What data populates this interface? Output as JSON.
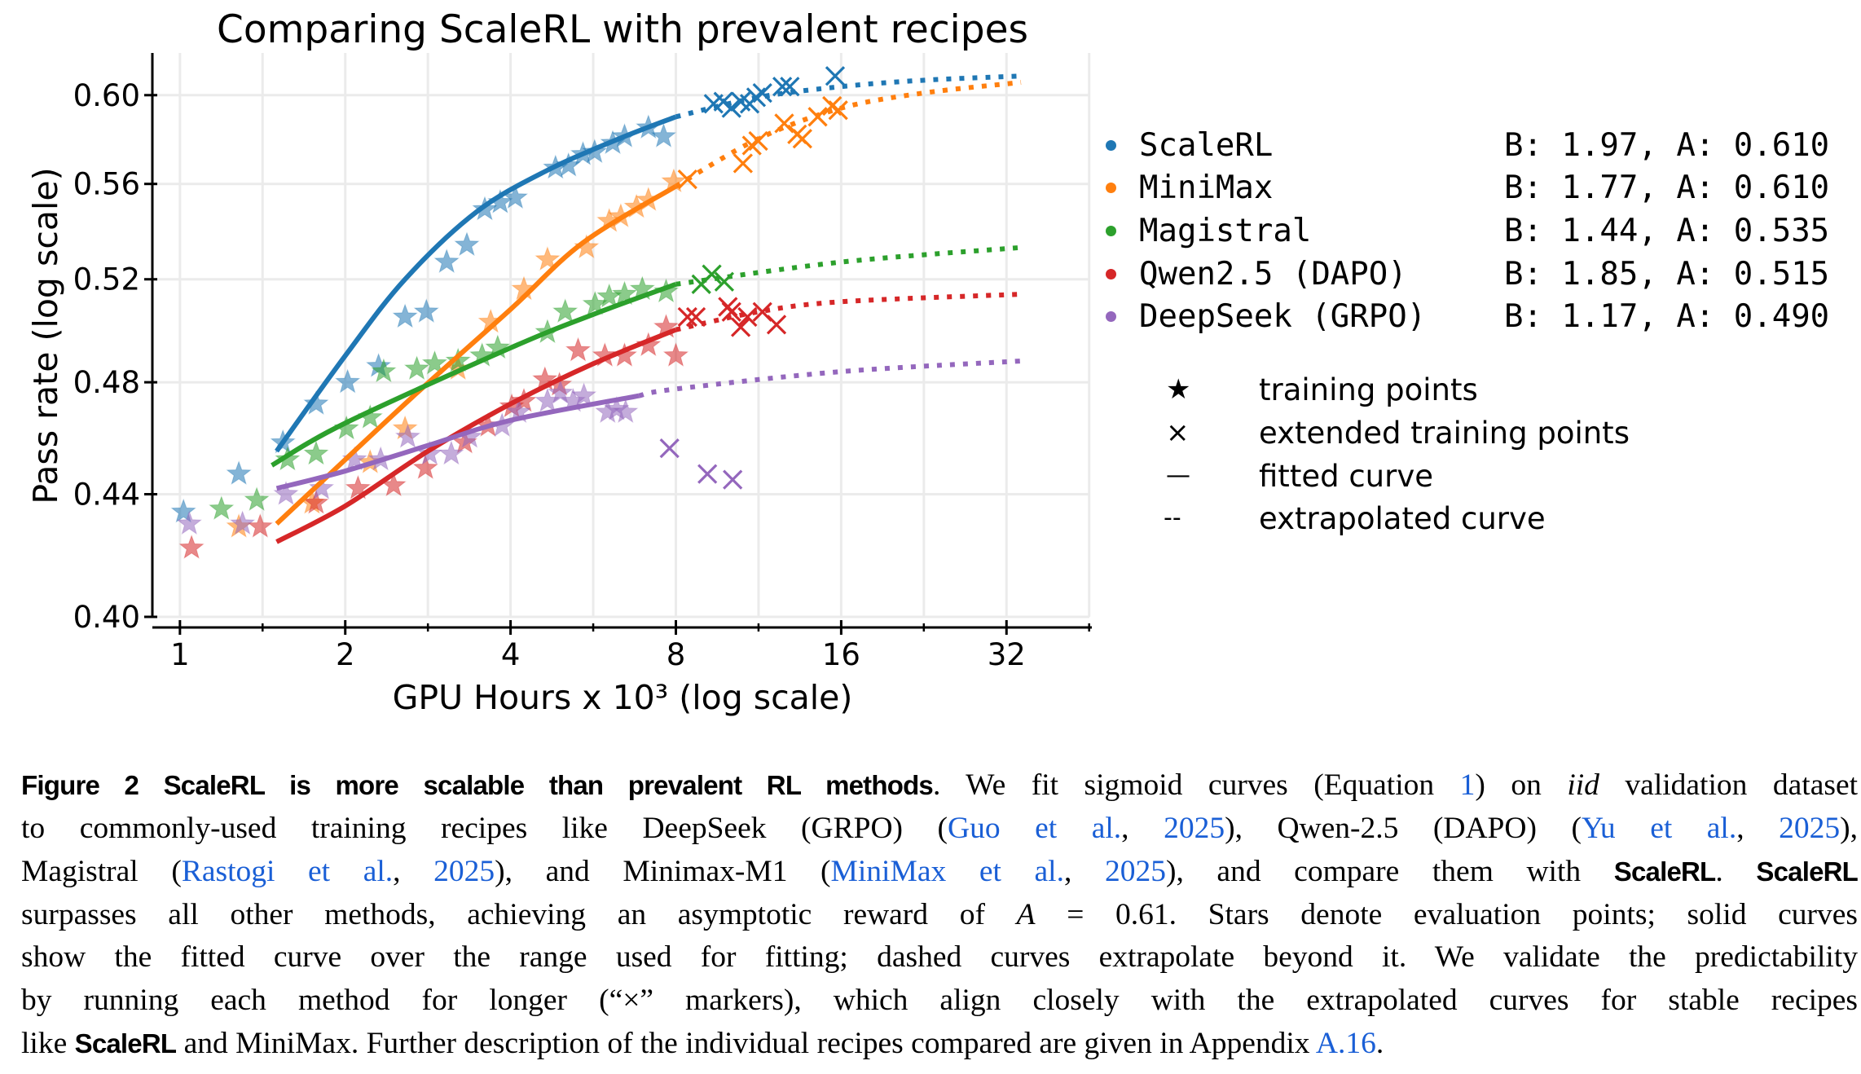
{
  "chart_data": {
    "type": "line",
    "title": "Comparing ScaleRL with prevalent recipes",
    "xlabel": "GPU Hours x 10³ (log scale)",
    "ylabel": "Pass rate (log scale)",
    "xscale": "log",
    "yscale": "log",
    "xlim": [
      0.9,
      45.3
    ],
    "ylim": [
      0.4,
      0.62
    ],
    "xticks": [
      1,
      2,
      4,
      8,
      16,
      32
    ],
    "xtick_labels": [
      "1",
      "2",
      "4",
      "8",
      "16",
      "32"
    ],
    "yticks": [
      0.4,
      0.44,
      0.48,
      0.52,
      0.56,
      0.6
    ],
    "ytick_labels": [
      "0.40",
      "0.44",
      "0.48",
      "0.52",
      "0.56",
      "0.60"
    ],
    "grid": true,
    "legend_placement": "right",
    "series": [
      {
        "name": "ScaleRL",
        "params": "B: 1.97, A: 0.610",
        "color": "#1f77b4",
        "training_points": [
          [
            1.015,
            0.434
          ],
          [
            1.28,
            0.447
          ],
          [
            1.54,
            0.458
          ],
          [
            1.77,
            0.472
          ],
          [
            2.02,
            0.48
          ],
          [
            2.3,
            0.486
          ],
          [
            2.57,
            0.505
          ],
          [
            2.81,
            0.507
          ],
          [
            3.06,
            0.527
          ],
          [
            3.33,
            0.534
          ],
          [
            3.59,
            0.549
          ],
          [
            3.83,
            0.552
          ],
          [
            4.08,
            0.554
          ],
          [
            4.83,
            0.567
          ],
          [
            5.1,
            0.568
          ],
          [
            5.42,
            0.573
          ],
          [
            5.69,
            0.574
          ],
          [
            6.14,
            0.578
          ],
          [
            6.45,
            0.581
          ],
          [
            7.13,
            0.585
          ],
          [
            7.6,
            0.581
          ]
        ],
        "extended_points": [
          [
            9.37,
            0.596
          ],
          [
            9.76,
            0.597
          ],
          [
            10.1,
            0.594
          ],
          [
            10.5,
            0.597
          ],
          [
            10.9,
            0.596
          ],
          [
            11.2,
            0.599
          ],
          [
            11.5,
            0.601
          ],
          [
            12.5,
            0.604
          ],
          [
            12.9,
            0.604
          ],
          [
            15.6,
            0.609
          ]
        ],
        "fitted_curve": [
          [
            1.5,
            0.455
          ],
          [
            2,
            0.49
          ],
          [
            2.57,
            0.52
          ],
          [
            3.47,
            0.548
          ],
          [
            4.67,
            0.566
          ],
          [
            6.3,
            0.58
          ],
          [
            8,
            0.59
          ]
        ],
        "extrapolated_curve": [
          [
            8,
            0.59
          ],
          [
            11.3,
            0.599
          ],
          [
            16,
            0.604
          ],
          [
            22.6,
            0.607
          ],
          [
            34,
            0.609
          ]
        ]
      },
      {
        "name": "MiniMax",
        "params": "B: 1.77, A: 0.610",
        "color": "#ff7f0e",
        "training_points": [
          [
            1.28,
            0.429
          ],
          [
            1.74,
            0.437
          ],
          [
            2.22,
            0.451
          ],
          [
            2.57,
            0.463
          ],
          [
            3.21,
            0.485
          ],
          [
            3.68,
            0.503
          ],
          [
            4.23,
            0.516
          ],
          [
            4.67,
            0.528
          ],
          [
            5.5,
            0.533
          ],
          [
            6.05,
            0.544
          ],
          [
            6.35,
            0.546
          ],
          [
            6.78,
            0.55
          ],
          [
            7.13,
            0.553
          ],
          [
            7.93,
            0.561
          ]
        ],
        "extended_points": [
          [
            8.4,
            0.562
          ],
          [
            10.6,
            0.569
          ],
          [
            11.0,
            0.577
          ],
          [
            11.3,
            0.579
          ],
          [
            12.6,
            0.587
          ],
          [
            13.3,
            0.582
          ],
          [
            13.6,
            0.58
          ],
          [
            14.5,
            0.59
          ],
          [
            15.4,
            0.595
          ],
          [
            15.8,
            0.593
          ]
        ],
        "fitted_curve": [
          [
            1.5,
            0.43
          ],
          [
            2,
            0.452
          ],
          [
            2.7,
            0.476
          ],
          [
            4,
            0.508
          ],
          [
            5.42,
            0.535
          ],
          [
            8,
            0.559
          ]
        ],
        "extrapolated_curve": [
          [
            8,
            0.559
          ],
          [
            11.3,
            0.58
          ],
          [
            16,
            0.594
          ],
          [
            22.6,
            0.601
          ],
          [
            34,
            0.606
          ]
        ]
      },
      {
        "name": "Magistral",
        "params": "B: 1.44, A: 0.535",
        "color": "#2ca02c",
        "training_points": [
          [
            1.19,
            0.435
          ],
          [
            1.38,
            0.438
          ],
          [
            1.57,
            0.452
          ],
          [
            1.77,
            0.454
          ],
          [
            2.01,
            0.463
          ],
          [
            2.22,
            0.467
          ],
          [
            2.35,
            0.484
          ],
          [
            2.7,
            0.485
          ],
          [
            2.91,
            0.487
          ],
          [
            3.21,
            0.488
          ],
          [
            3.55,
            0.49
          ],
          [
            3.79,
            0.493
          ],
          [
            4.67,
            0.499
          ],
          [
            5.03,
            0.507
          ],
          [
            5.7,
            0.51
          ],
          [
            6.05,
            0.513
          ],
          [
            6.45,
            0.514
          ],
          [
            6.95,
            0.516
          ],
          [
            7.68,
            0.515
          ]
        ],
        "extended_points": [
          [
            8.9,
            0.518
          ],
          [
            9.3,
            0.522
          ],
          [
            9.8,
            0.519
          ]
        ],
        "fitted_curve": [
          [
            1.47,
            0.45
          ],
          [
            2,
            0.465
          ],
          [
            4,
            0.493
          ],
          [
            5.66,
            0.506
          ],
          [
            8,
            0.518
          ]
        ],
        "extrapolated_curve": [
          [
            8,
            0.518
          ],
          [
            16,
            0.527
          ],
          [
            34,
            0.533
          ]
        ]
      },
      {
        "name": "Qwen2.5 (DAPO)",
        "params": "B: 1.85, A: 0.515",
        "color": "#d62728",
        "training_points": [
          [
            1.05,
            0.422
          ],
          [
            1.4,
            0.429
          ],
          [
            1.77,
            0.437
          ],
          [
            2.11,
            0.442
          ],
          [
            2.45,
            0.443
          ],
          [
            2.8,
            0.449
          ],
          [
            3.3,
            0.458
          ],
          [
            3.64,
            0.464
          ],
          [
            4.02,
            0.471
          ],
          [
            4.23,
            0.473
          ],
          [
            4.62,
            0.481
          ],
          [
            4.91,
            0.479
          ],
          [
            5.31,
            0.492
          ],
          [
            5.94,
            0.49
          ],
          [
            6.45,
            0.49
          ],
          [
            7.13,
            0.494
          ],
          [
            7.68,
            0.501
          ],
          [
            8.0,
            0.49
          ]
        ],
        "extended_points": [
          [
            8.4,
            0.505
          ],
          [
            8.7,
            0.505
          ],
          [
            9.95,
            0.509
          ],
          [
            10.1,
            0.507
          ],
          [
            10.5,
            0.501
          ],
          [
            10.8,
            0.505
          ],
          [
            11.5,
            0.507
          ],
          [
            12.2,
            0.502
          ]
        ],
        "fitted_curve": [
          [
            1.5,
            0.424
          ],
          [
            2,
            0.436
          ],
          [
            2.83,
            0.455
          ],
          [
            4,
            0.472
          ],
          [
            5.66,
            0.487
          ],
          [
            8,
            0.5
          ]
        ],
        "extrapolated_curve": [
          [
            8,
            0.5
          ],
          [
            11.3,
            0.507
          ],
          [
            16,
            0.511
          ],
          [
            34,
            0.514
          ]
        ]
      },
      {
        "name": "DeepSeek (GRPO)",
        "params": "B: 1.17, A: 0.490",
        "color": "#9467bd",
        "training_points": [
          [
            1.04,
            0.43
          ],
          [
            1.3,
            0.43
          ],
          [
            1.56,
            0.44
          ],
          [
            1.81,
            0.442
          ],
          [
            2.08,
            0.452
          ],
          [
            2.32,
            0.452
          ],
          [
            2.6,
            0.46
          ],
          [
            2.85,
            0.454
          ],
          [
            3.12,
            0.454
          ],
          [
            3.37,
            0.46
          ],
          [
            3.86,
            0.464
          ],
          [
            4.14,
            0.469
          ],
          [
            4.67,
            0.473
          ],
          [
            4.93,
            0.476
          ],
          [
            5.2,
            0.473
          ],
          [
            5.44,
            0.475
          ],
          [
            6.01,
            0.469
          ],
          [
            6.24,
            0.47
          ],
          [
            6.48,
            0.469
          ]
        ],
        "extended_points": [
          [
            7.79,
            0.456
          ],
          [
            9.13,
            0.447
          ],
          [
            10.15,
            0.445
          ]
        ],
        "fitted_curve": [
          [
            1.5,
            0.442
          ],
          [
            2,
            0.448
          ],
          [
            2.83,
            0.457
          ],
          [
            4,
            0.466
          ],
          [
            6.85,
            0.475
          ]
        ],
        "extrapolated_curve": [
          [
            6.85,
            0.475
          ],
          [
            8,
            0.4775
          ],
          [
            16,
            0.484
          ],
          [
            34,
            0.488
          ]
        ]
      }
    ],
    "marker_legend": [
      {
        "symbol": "★",
        "label": "training points"
      },
      {
        "symbol": "×",
        "label": "extended training points"
      },
      {
        "symbol": "—",
        "label": "fitted curve"
      },
      {
        "symbol": "--",
        "label": "extrapolated curve"
      }
    ]
  },
  "caption": {
    "lines": [
      [
        {
          "t": "bold",
          "text": "Figure 2  ScaleRL is more scalable than prevalent RL methods"
        },
        {
          "t": "text",
          "text": ". We fit sigmoid curves (Equation "
        },
        {
          "t": "link",
          "text": "1"
        },
        {
          "t": "text",
          "text": ") on "
        },
        {
          "t": "italic",
          "text": "iid"
        },
        {
          "t": "text",
          "text": " validation dataset"
        }
      ],
      [
        {
          "t": "text",
          "text": "to commonly-used training recipes like DeepSeek (GRPO) ("
        },
        {
          "t": "link",
          "text": "Guo et al."
        },
        {
          "t": "text",
          "text": ", "
        },
        {
          "t": "link",
          "text": "2025"
        },
        {
          "t": "text",
          "text": "), Qwen-2.5 (DAPO) ("
        },
        {
          "t": "link",
          "text": "Yu et al."
        },
        {
          "t": "text",
          "text": ", "
        },
        {
          "t": "link",
          "text": "2025"
        },
        {
          "t": "text",
          "text": "),"
        }
      ],
      [
        {
          "t": "text",
          "text": "Magistral ("
        },
        {
          "t": "link",
          "text": "Rastogi et al."
        },
        {
          "t": "text",
          "text": ", "
        },
        {
          "t": "link",
          "text": "2025"
        },
        {
          "t": "text",
          "text": "), and Minimax-M1 ("
        },
        {
          "t": "link",
          "text": "MiniMax et al."
        },
        {
          "t": "text",
          "text": ", "
        },
        {
          "t": "link",
          "text": "2025"
        },
        {
          "t": "text",
          "text": "), and compare them with "
        },
        {
          "t": "bold",
          "text": "ScaleRL"
        },
        {
          "t": "text",
          "text": ". "
        },
        {
          "t": "bold",
          "text": "ScaleRL"
        }
      ],
      [
        {
          "t": "text",
          "text": "surpasses all other methods, achieving an asymptotic reward of "
        },
        {
          "t": "italic",
          "text": "A"
        },
        {
          "t": "text",
          "text": " = 0.61. Stars denote evaluation points; solid curves"
        }
      ],
      [
        {
          "t": "text",
          "text": "show the fitted curve over the range used for fitting; dashed curves extrapolate beyond it. We validate the predictability"
        }
      ],
      [
        {
          "t": "text",
          "text": "by running each method for longer (“×” markers), which align closely with the extrapolated curves for stable recipes"
        }
      ],
      [
        {
          "t": "text",
          "text": "like "
        },
        {
          "t": "bold",
          "text": "ScaleRL"
        },
        {
          "t": "text",
          "text": " and MiniMax. Further description of the individual recipes compared are given in Appendix "
        },
        {
          "t": "link",
          "text": "A.16"
        },
        {
          "t": "text",
          "text": "."
        }
      ]
    ]
  }
}
